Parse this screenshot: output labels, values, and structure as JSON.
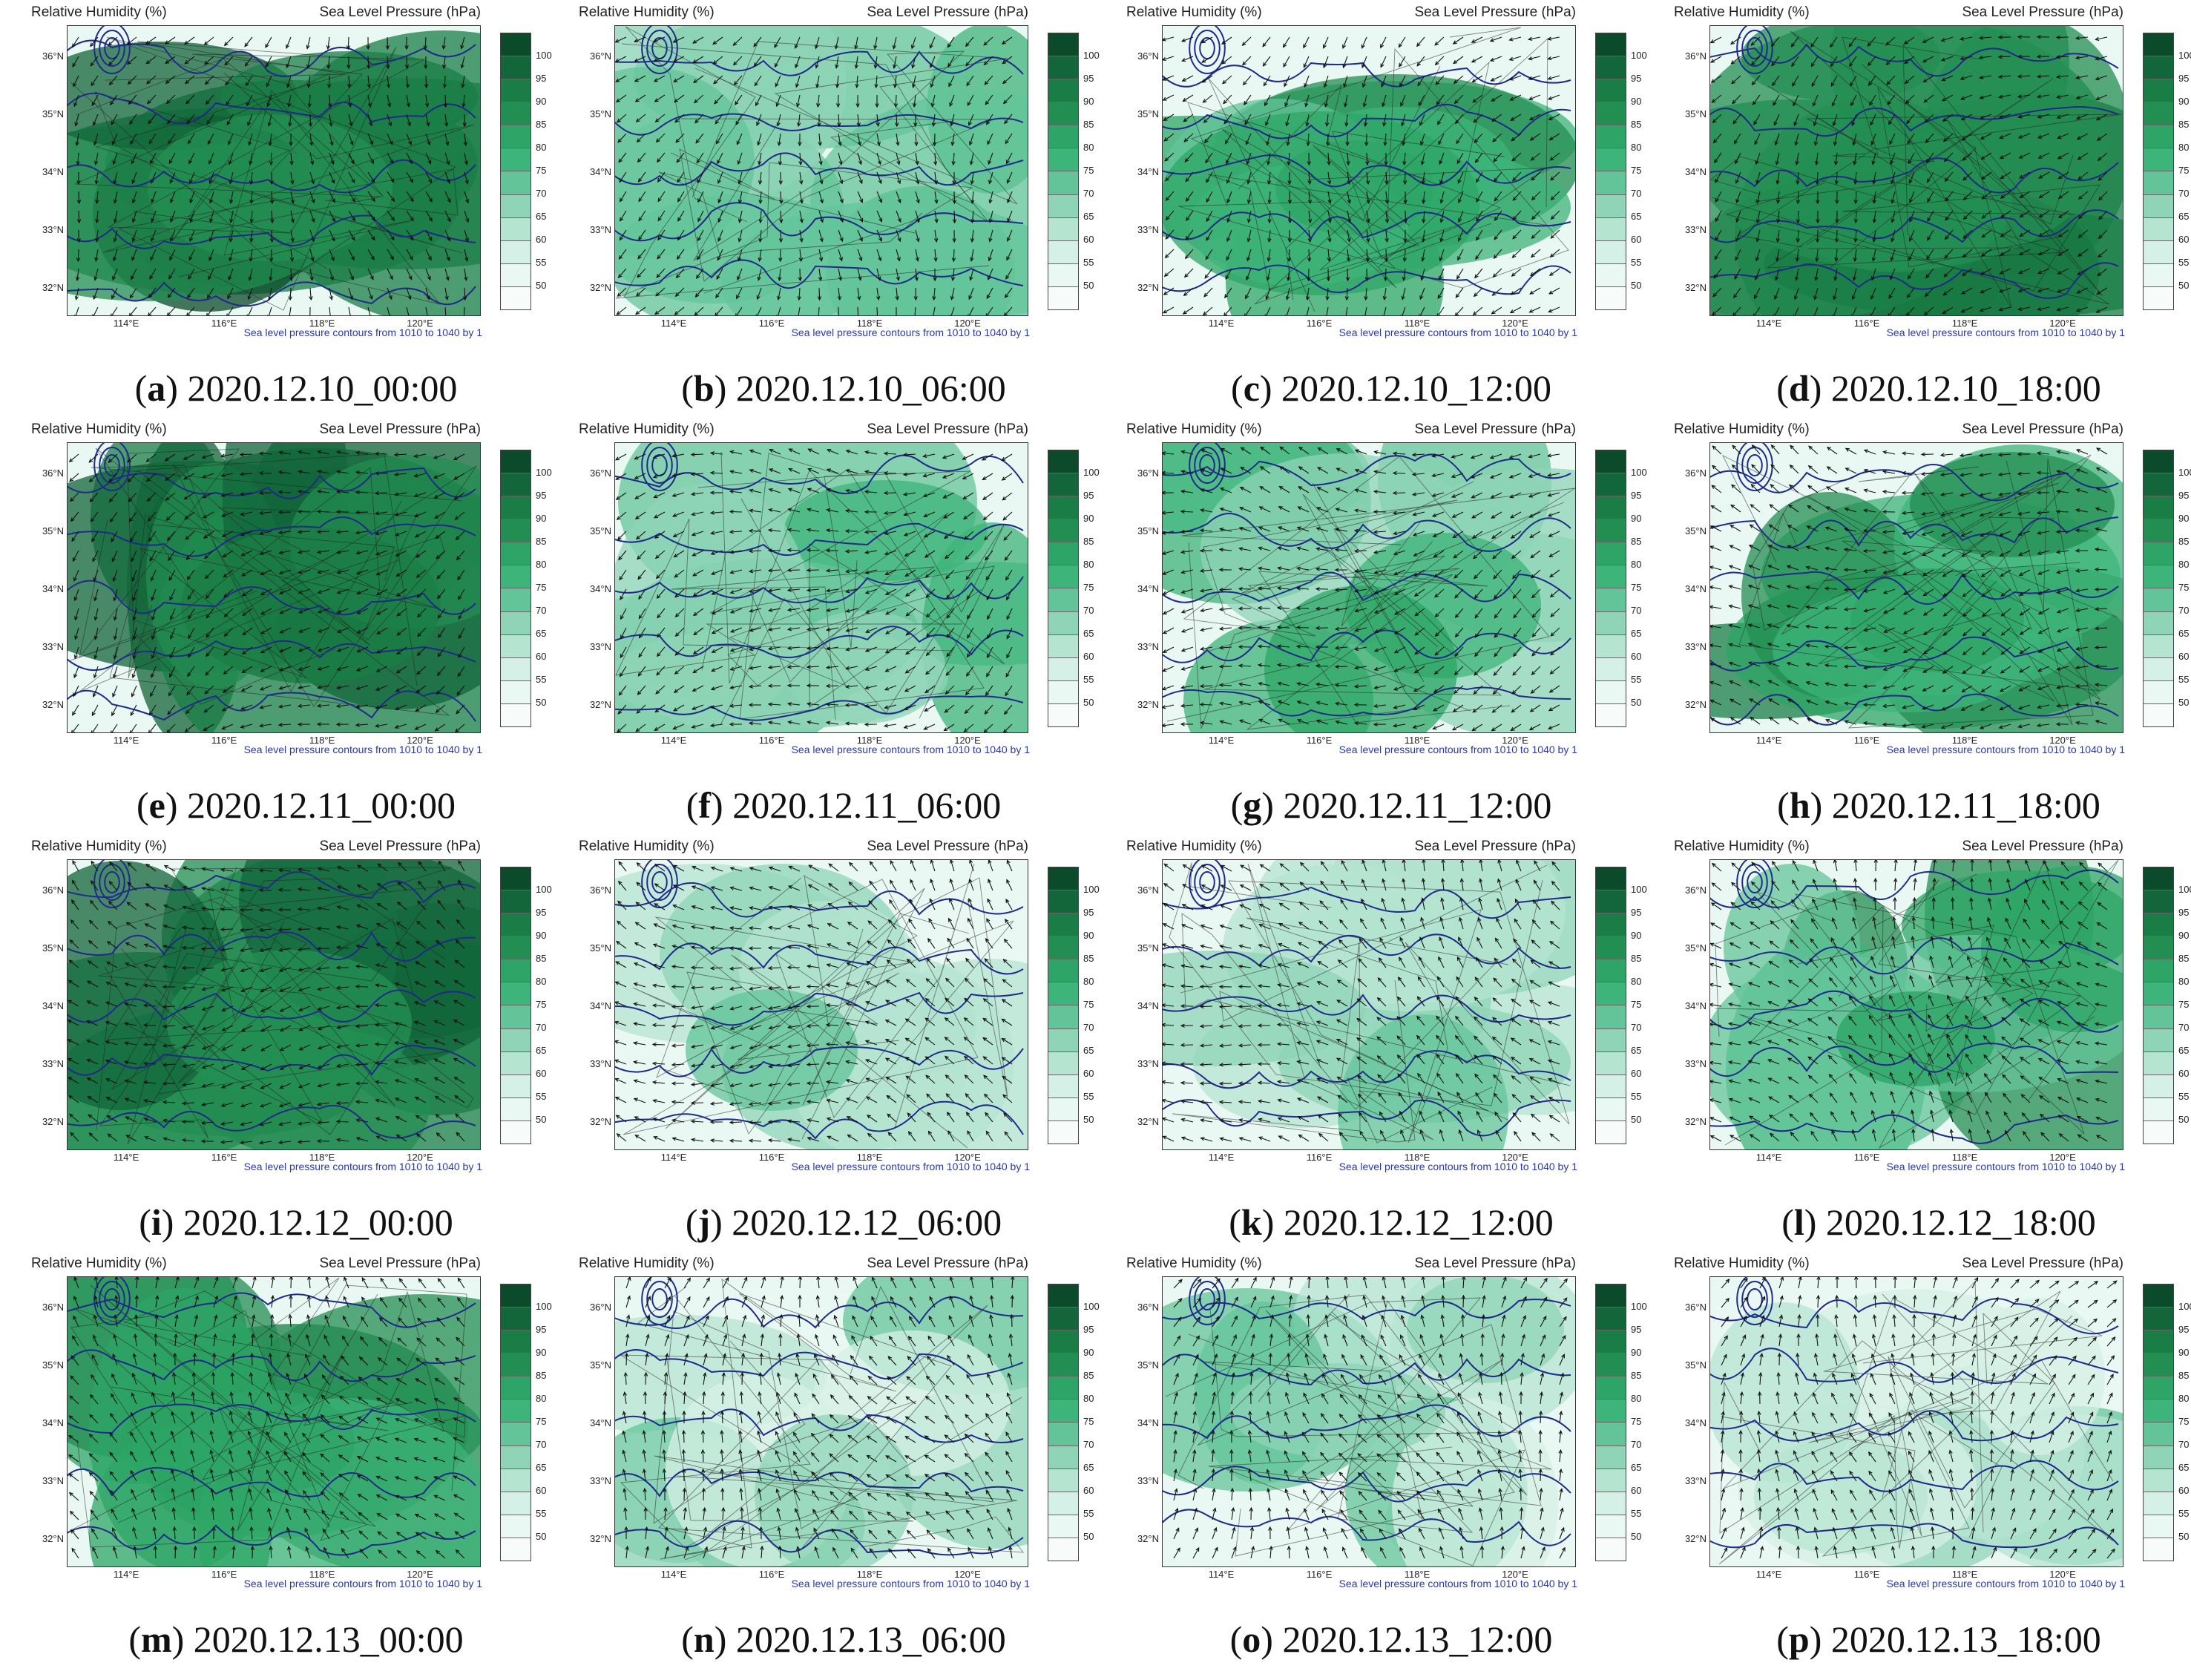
{
  "figure": {
    "panel_header_left": "Relative Humidity (%)",
    "panel_header_right": "Sea Level Pressure (hPa)",
    "footer_note": "Sea level pressure contours from 1010 to 1040 by 1",
    "lat_labels": [
      "36°N",
      "35°N",
      "34°N",
      "33°N",
      "32°N"
    ],
    "lon_labels": [
      "114°E",
      "116°E",
      "118°E",
      "120°E"
    ],
    "colorbar": {
      "labels": [
        "100",
        "95",
        "90",
        "85",
        "80",
        "75",
        "70",
        "65",
        "60",
        "55",
        "50"
      ],
      "colors": [
        "#0b4a2a",
        "#12663a",
        "#1a7d45",
        "#238e52",
        "#2ea566",
        "#3db47a",
        "#63c49a",
        "#8fd4b7",
        "#b5e4d1",
        "#d5f0e6",
        "#eaf8f3",
        "#f7fcfa"
      ]
    },
    "contour_color": "#1f2a8a",
    "panels": [
      {
        "letter": "a",
        "time": "2020.12.10_00:00",
        "wetness": 0.85
      },
      {
        "letter": "b",
        "time": "2020.12.10_06:00",
        "wetness": 0.45
      },
      {
        "letter": "c",
        "time": "2020.12.10_12:00",
        "wetness": 0.55
      },
      {
        "letter": "d",
        "time": "2020.12.10_18:00",
        "wetness": 0.8
      },
      {
        "letter": "e",
        "time": "2020.12.11_00:00",
        "wetness": 0.9
      },
      {
        "letter": "f",
        "time": "2020.12.11_06:00",
        "wetness": 0.45
      },
      {
        "letter": "g",
        "time": "2020.12.11_12:00",
        "wetness": 0.4
      },
      {
        "letter": "h",
        "time": "2020.12.11_18:00",
        "wetness": 0.6
      },
      {
        "letter": "i",
        "time": "2020.12.12_00:00",
        "wetness": 0.85
      },
      {
        "letter": "j",
        "time": "2020.12.12_06:00",
        "wetness": 0.25
      },
      {
        "letter": "k",
        "time": "2020.12.12_12:00",
        "wetness": 0.25
      },
      {
        "letter": "l",
        "time": "2020.12.12_18:00",
        "wetness": 0.55
      },
      {
        "letter": "m",
        "time": "2020.12.13_00:00",
        "wetness": 0.6
      },
      {
        "letter": "n",
        "time": "2020.12.13_06:00",
        "wetness": 0.2
      },
      {
        "letter": "o",
        "time": "2020.12.13_12:00",
        "wetness": 0.2
      },
      {
        "letter": "p",
        "time": "2020.12.13_18:00",
        "wetness": 0.2
      }
    ]
  }
}
